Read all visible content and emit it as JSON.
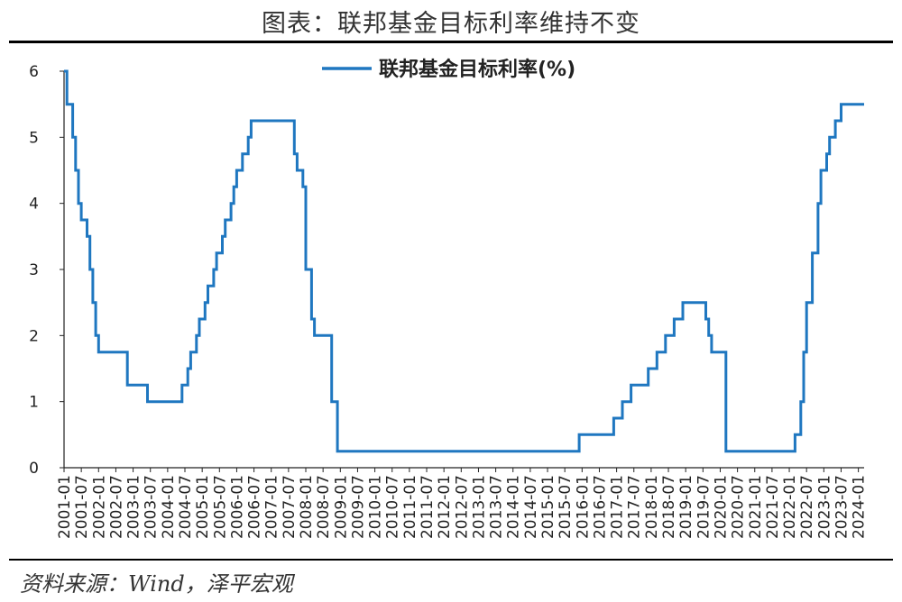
{
  "header": {
    "title": "图表：联邦基金目标利率维持不变"
  },
  "footer": {
    "source": "资料来源：Wind，泽平宏观"
  },
  "colors": {
    "series": "#1f77c0",
    "axis": "#222222",
    "rule": "#000000"
  },
  "chart_data": {
    "type": "line",
    "title": "图表：联邦基金目标利率维持不变",
    "xlabel": "",
    "ylabel": "",
    "ylim": [
      0,
      6
    ],
    "yticks": [
      "0",
      "1",
      "2",
      "3",
      "4",
      "5",
      "6"
    ],
    "xlim": [
      "2001-01",
      "2024-03"
    ],
    "xticks": [
      "2001-01",
      "2001-07",
      "2002-01",
      "2002-07",
      "2003-01",
      "2003-07",
      "2004-01",
      "2004-07",
      "2005-01",
      "2005-07",
      "2006-01",
      "2006-07",
      "2007-01",
      "2007-07",
      "2008-01",
      "2008-07",
      "2009-01",
      "2009-07",
      "2010-01",
      "2010-07",
      "2011-01",
      "2011-07",
      "2012-01",
      "2012-07",
      "2013-01",
      "2013-07",
      "2014-01",
      "2014-07",
      "2015-01",
      "2015-07",
      "2016-01",
      "2016-07",
      "2017-01",
      "2017-07",
      "2018-01",
      "2018-07",
      "2019-01",
      "2019-07",
      "2020-01",
      "2020-07",
      "2021-01",
      "2021-07",
      "2022-01",
      "2022-07",
      "2023-01",
      "2023-07",
      "2024-01"
    ],
    "grid": false,
    "legend_position": "top-center",
    "step": true,
    "series": [
      {
        "name": "联邦基金目标利率(%)",
        "color": "#1f77c0",
        "points": [
          [
            "2001-01",
            6.0
          ],
          [
            "2001-02",
            5.5
          ],
          [
            "2001-04",
            5.0
          ],
          [
            "2001-05",
            4.5
          ],
          [
            "2001-06",
            4.0
          ],
          [
            "2001-07",
            3.75
          ],
          [
            "2001-09",
            3.5
          ],
          [
            "2001-10",
            3.0
          ],
          [
            "2001-11",
            2.5
          ],
          [
            "2001-12",
            2.0
          ],
          [
            "2002-01",
            1.75
          ],
          [
            "2002-11",
            1.25
          ],
          [
            "2003-06",
            1.0
          ],
          [
            "2004-06",
            1.25
          ],
          [
            "2004-08",
            1.5
          ],
          [
            "2004-09",
            1.75
          ],
          [
            "2004-11",
            2.0
          ],
          [
            "2004-12",
            2.25
          ],
          [
            "2005-02",
            2.5
          ],
          [
            "2005-03",
            2.75
          ],
          [
            "2005-05",
            3.0
          ],
          [
            "2005-06",
            3.25
          ],
          [
            "2005-08",
            3.5
          ],
          [
            "2005-09",
            3.75
          ],
          [
            "2005-11",
            4.0
          ],
          [
            "2005-12",
            4.25
          ],
          [
            "2006-01",
            4.5
          ],
          [
            "2006-03",
            4.75
          ],
          [
            "2006-05",
            5.0
          ],
          [
            "2006-06",
            5.25
          ],
          [
            "2007-09",
            4.75
          ],
          [
            "2007-10",
            4.5
          ],
          [
            "2007-12",
            4.25
          ],
          [
            "2008-01",
            3.0
          ],
          [
            "2008-03",
            2.25
          ],
          [
            "2008-04",
            2.0
          ],
          [
            "2008-10",
            1.0
          ],
          [
            "2008-12",
            0.25
          ],
          [
            "2015-12",
            0.5
          ],
          [
            "2016-12",
            0.75
          ],
          [
            "2017-03",
            1.0
          ],
          [
            "2017-06",
            1.25
          ],
          [
            "2017-12",
            1.5
          ],
          [
            "2018-03",
            1.75
          ],
          [
            "2018-06",
            2.0
          ],
          [
            "2018-09",
            2.25
          ],
          [
            "2018-12",
            2.5
          ],
          [
            "2019-08",
            2.25
          ],
          [
            "2019-09",
            2.0
          ],
          [
            "2019-10",
            1.75
          ],
          [
            "2020-03",
            0.25
          ],
          [
            "2022-03",
            0.5
          ],
          [
            "2022-05",
            1.0
          ],
          [
            "2022-06",
            1.75
          ],
          [
            "2022-07",
            2.5
          ],
          [
            "2022-09",
            3.25
          ],
          [
            "2022-11",
            4.0
          ],
          [
            "2022-12",
            4.5
          ],
          [
            "2023-02",
            4.75
          ],
          [
            "2023-03",
            5.0
          ],
          [
            "2023-05",
            5.25
          ],
          [
            "2023-07",
            5.5
          ],
          [
            "2024-03",
            5.5
          ]
        ]
      }
    ]
  }
}
